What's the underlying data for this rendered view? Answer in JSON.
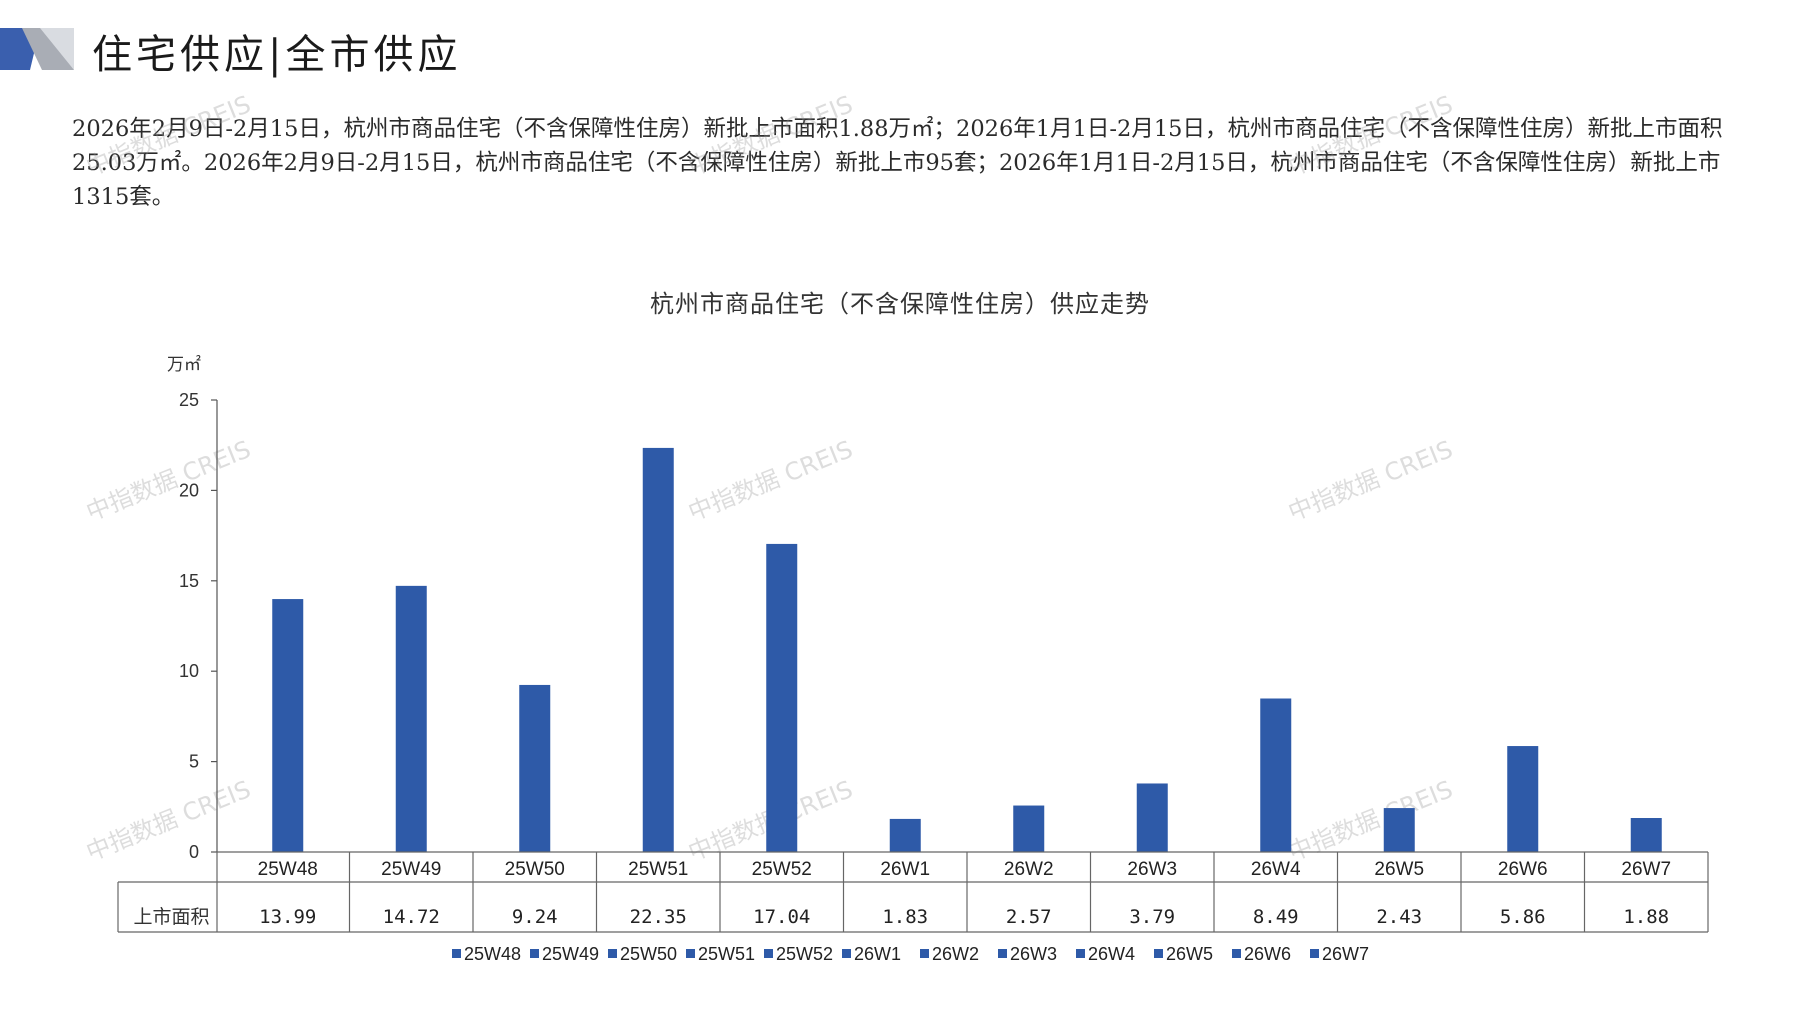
{
  "page": {
    "title": "住宅供应|全市供应",
    "summary": "2026年2月9日-2月15日，杭州市商品住宅（不含保障性住房）新批上市面积1.88万㎡；2026年1月1日-2月15日，杭州市商品住宅（不含保障性住房）新批上市面积25.03万㎡。2026年2月9日-2月15日，杭州市商品住宅（不含保障性住房）新批上市95套；2026年1月1日-2月15日，杭州市商品住宅（不含保障性住房）新批上市1315套。",
    "watermark": "中指数据 CREIS"
  },
  "colors": {
    "bar": "#2e5aa8",
    "accent": "#3a5fae",
    "logo_grey": "#a9adb5"
  },
  "chart_data": {
    "type": "bar",
    "title": "杭州市商品住宅（不含保障性住房）供应走势",
    "ylabel": "万㎡",
    "ylim": [
      0,
      25
    ],
    "yticks": [
      0,
      5,
      10,
      15,
      20,
      25
    ],
    "categories": [
      "25W48",
      "25W49",
      "25W50",
      "25W51",
      "25W52",
      "26W1",
      "26W2",
      "26W3",
      "26W4",
      "26W5",
      "26W6",
      "26W7"
    ],
    "series": [
      {
        "name": "上市面积",
        "values": [
          13.99,
          14.72,
          9.24,
          22.35,
          17.04,
          1.83,
          2.57,
          3.79,
          8.49,
          2.43,
          5.86,
          1.88
        ]
      }
    ],
    "table": {
      "row_label": "上市面积",
      "values": [
        "13.99",
        "14.72",
        "9.24",
        "22.35",
        "17.04",
        "1.83",
        "2.57",
        "3.79",
        "8.49",
        "2.43",
        "5.86",
        "1.88"
      ]
    },
    "legend": {
      "position": "bottom",
      "entries": [
        "25W48",
        "25W49",
        "25W50",
        "25W51",
        "25W52",
        "26W1",
        "26W2",
        "26W3",
        "26W4",
        "26W5",
        "26W6",
        "26W7"
      ]
    },
    "grid": false
  }
}
